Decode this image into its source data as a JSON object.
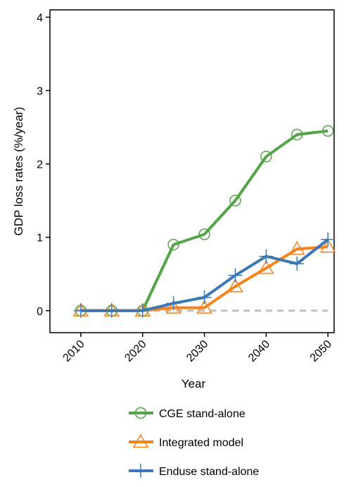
{
  "chart_data": {
    "type": "line",
    "title": "",
    "xlabel": "Year",
    "ylabel": "GDP loss rates (%/year)",
    "x": [
      2010,
      2015,
      2020,
      2025,
      2030,
      2035,
      2040,
      2045,
      2050
    ],
    "xticks": [
      "2010",
      "2020",
      "2030",
      "2040",
      "2050"
    ],
    "yticks": [
      "0",
      "1",
      "2",
      "3",
      "4"
    ],
    "xlim": [
      2005,
      2051
    ],
    "ylim": [
      -0.3,
      4.1
    ],
    "grid": false,
    "legend_position": "bottom",
    "reference_line": {
      "y": 0,
      "style": "dashed",
      "color": "#bfbfbf"
    },
    "series": [
      {
        "name": "CGE stand-alone",
        "color": "#52a447",
        "marker": "circle",
        "values": [
          0,
          0,
          0,
          0.9,
          1.04,
          1.5,
          2.1,
          2.4,
          2.45
        ]
      },
      {
        "name": "Integrated model",
        "color": "#f7831a",
        "marker": "triangle",
        "values": [
          0,
          0,
          0,
          0.04,
          0.04,
          0.33,
          0.58,
          0.84,
          0.87
        ]
      },
      {
        "name": "Enduse stand-alone",
        "color": "#3b78b5",
        "marker": "plus",
        "values": [
          0,
          0,
          0,
          0.1,
          0.18,
          0.48,
          0.74,
          0.64,
          0.97
        ]
      }
    ]
  }
}
